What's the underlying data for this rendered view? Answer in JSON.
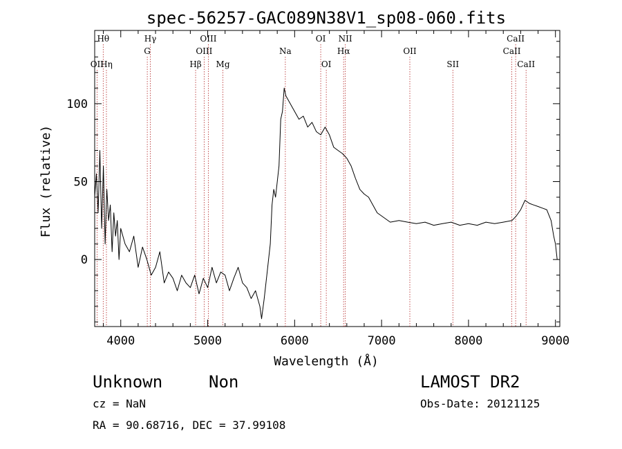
{
  "chart_data": {
    "type": "line",
    "title": "spec-56257-GAC089N38V1_sp08-060.fits",
    "xlabel": "Wavelength (Å)",
    "ylabel": "Flux (relative)",
    "xlim": [
      3700,
      9050
    ],
    "ylim": [
      -43,
      147
    ],
    "xticks": [
      4000,
      5000,
      6000,
      7000,
      8000,
      9000
    ],
    "yticks": [
      0,
      50,
      100
    ],
    "grid": false,
    "line_color": "#000000",
    "marker_color": "#b22222",
    "series": [
      {
        "x": [
          3700,
          3720,
          3740,
          3760,
          3780,
          3800,
          3820,
          3840,
          3860,
          3880,
          3900,
          3920,
          3940,
          3960,
          3980,
          4000,
          4050,
          4100,
          4150,
          4200,
          4250,
          4300,
          4350,
          4400,
          4450,
          4500,
          4550,
          4600,
          4650,
          4700,
          4750,
          4800,
          4850,
          4900,
          4950,
          5000,
          5050,
          5100,
          5150,
          5200,
          5250,
          5300,
          5350,
          5400,
          5450,
          5500,
          5550,
          5600,
          5620,
          5650,
          5680,
          5700,
          5720,
          5740,
          5760,
          5780,
          5800,
          5820,
          5840,
          5860,
          5880,
          5900,
          5950,
          6000,
          6050,
          6100,
          6150,
          6200,
          6250,
          6300,
          6350,
          6400,
          6450,
          6500,
          6550,
          6600,
          6650,
          6700,
          6750,
          6800,
          6850,
          6900,
          6950,
          7000,
          7100,
          7200,
          7300,
          7400,
          7500,
          7600,
          7700,
          7800,
          7900,
          8000,
          8100,
          8200,
          8300,
          8400,
          8500,
          8550,
          8600,
          8650,
          8700,
          8750,
          8800,
          8850,
          8900,
          8950,
          8980,
          9000,
          9020
        ],
        "y": [
          40,
          55,
          30,
          70,
          20,
          60,
          10,
          45,
          25,
          35,
          5,
          30,
          15,
          25,
          0,
          20,
          10,
          5,
          15,
          -5,
          8,
          0,
          -10,
          -5,
          5,
          -15,
          -8,
          -12,
          -20,
          -10,
          -15,
          -18,
          -10,
          -22,
          -12,
          -18,
          -5,
          -15,
          -8,
          -10,
          -20,
          -12,
          -5,
          -15,
          -18,
          -25,
          -20,
          -30,
          -38,
          -25,
          -10,
          0,
          10,
          35,
          45,
          40,
          50,
          60,
          90,
          95,
          110,
          105,
          100,
          95,
          90,
          92,
          85,
          88,
          82,
          80,
          85,
          80,
          72,
          70,
          68,
          65,
          60,
          52,
          45,
          42,
          40,
          35,
          30,
          28,
          24,
          25,
          24,
          23,
          24,
          22,
          23,
          24,
          22,
          23,
          22,
          24,
          23,
          24,
          25,
          28,
          32,
          38,
          36,
          35,
          34,
          33,
          32,
          25,
          15,
          10,
          0
        ]
      }
    ],
    "line_markers": [
      {
        "label": "Hθ",
        "x": 3798,
        "row": 0
      },
      {
        "label": "OII",
        "x": 3727,
        "row": 2
      },
      {
        "label": "Hη",
        "x": 3835,
        "row": 2
      },
      {
        "label": "Hγ",
        "x": 4340,
        "row": 0
      },
      {
        "label": "G",
        "x": 4305,
        "row": 1
      },
      {
        "label": "OIII",
        "x": 5007,
        "row": 0
      },
      {
        "label": "OIII",
        "x": 4959,
        "row": 1
      },
      {
        "label": "Hβ",
        "x": 4861,
        "row": 2
      },
      {
        "label": "Mg",
        "x": 5175,
        "row": 2
      },
      {
        "label": "Na",
        "x": 5893,
        "row": 1
      },
      {
        "label": "OI",
        "x": 6300,
        "row": 0
      },
      {
        "label": "OI",
        "x": 6364,
        "row": 2
      },
      {
        "label": "NII",
        "x": 6583,
        "row": 0
      },
      {
        "label": "Hα",
        "x": 6563,
        "row": 1
      },
      {
        "label": "OII",
        "x": 7325,
        "row": 1
      },
      {
        "label": "SII",
        "x": 7820,
        "row": 2
      },
      {
        "label": "CaII",
        "x": 8542,
        "row": 0
      },
      {
        "label": "CaII",
        "x": 8498,
        "row": 1
      },
      {
        "label": "CaII",
        "x": 8662,
        "row": 2
      }
    ]
  },
  "info": {
    "class": "Unknown",
    "subclass": "Non",
    "survey": "LAMOST DR2",
    "cz": "cz = NaN",
    "obs_date": "Obs-Date: 20121125",
    "coords": "RA =  90.68716, DEC =  37.99108"
  }
}
